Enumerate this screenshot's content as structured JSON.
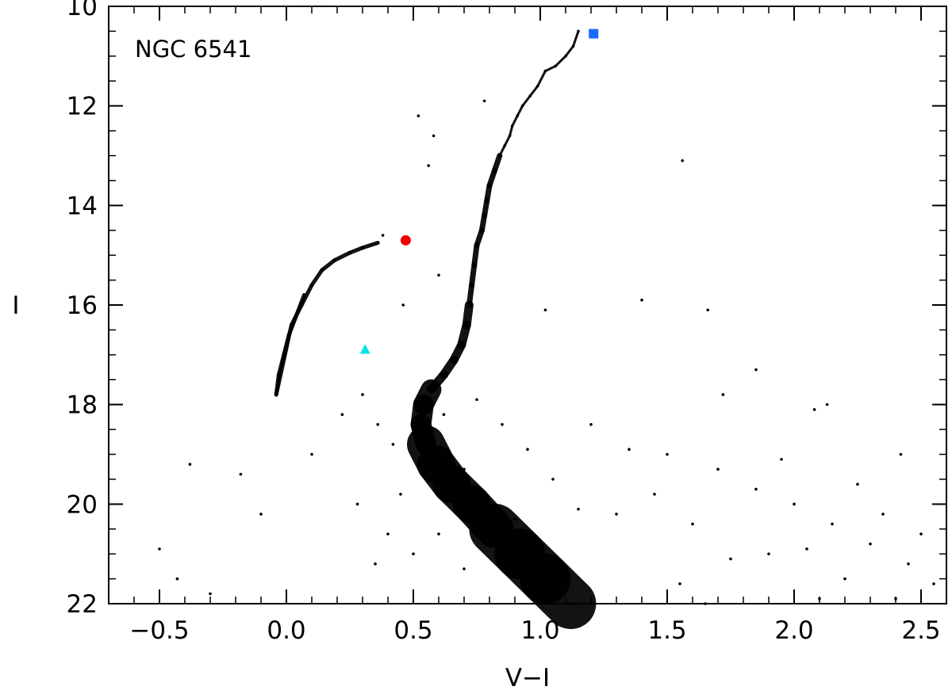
{
  "chart_data": {
    "type": "scatter",
    "title": "",
    "annotation": "NGC 6541",
    "xlabel": "V−I",
    "ylabel": "I",
    "xlim": [
      -0.7,
      2.6
    ],
    "ylim": [
      22,
      10
    ],
    "y_inverted": true,
    "grid": false,
    "legend": "none",
    "x_ticks": [
      -0.5,
      0.0,
      0.5,
      1.0,
      1.5,
      2.0,
      2.5
    ],
    "x_tick_labels": [
      "−0.5",
      "0.0",
      "0.5",
      "1.0",
      "1.5",
      "2.0",
      "2.5"
    ],
    "y_ticks": [
      10,
      12,
      14,
      16,
      18,
      20,
      22
    ],
    "y_tick_labels": [
      "10",
      "12",
      "14",
      "16",
      "18",
      "20",
      "22"
    ],
    "series": [
      {
        "kind": "dots",
        "color": "#000000",
        "points": [
          [
            1.15,
            10.5
          ],
          [
            1.13,
            10.8
          ],
          [
            1.1,
            11.0
          ],
          [
            1.06,
            11.2
          ],
          [
            1.02,
            11.3
          ],
          [
            0.99,
            11.6
          ],
          [
            0.96,
            11.8
          ],
          [
            0.93,
            12.0
          ],
          [
            0.91,
            12.2
          ],
          [
            0.89,
            12.4
          ],
          [
            0.88,
            12.6
          ],
          [
            0.86,
            12.8
          ],
          [
            0.84,
            13.0
          ],
          [
            0.82,
            13.3
          ],
          [
            0.8,
            13.6
          ],
          [
            0.79,
            13.9
          ],
          [
            0.78,
            14.2
          ],
          [
            0.77,
            14.5
          ],
          [
            0.75,
            14.8
          ],
          [
            0.74,
            15.2
          ],
          [
            0.73,
            15.6
          ],
          [
            0.72,
            16.0
          ],
          [
            0.71,
            16.4
          ],
          [
            0.69,
            16.8
          ],
          [
            0.66,
            17.1
          ],
          [
            0.62,
            17.4
          ],
          [
            0.57,
            17.7
          ],
          [
            0.54,
            18.0
          ],
          [
            0.53,
            18.4
          ],
          [
            0.55,
            18.8
          ],
          [
            0.59,
            19.2
          ],
          [
            0.65,
            19.6
          ],
          [
            0.73,
            20.0
          ],
          [
            0.82,
            20.5
          ],
          [
            0.92,
            21.0
          ],
          [
            1.02,
            21.5
          ],
          [
            1.12,
            22.0
          ],
          [
            0.07,
            15.8
          ],
          [
            0.04,
            16.2
          ],
          [
            0.01,
            16.6
          ],
          [
            -0.01,
            17.0
          ],
          [
            -0.03,
            17.4
          ],
          [
            -0.04,
            17.8
          ],
          [
            0.02,
            16.4
          ],
          [
            0.06,
            16.0
          ],
          [
            0.1,
            15.6
          ],
          [
            0.14,
            15.3
          ],
          [
            0.19,
            15.1
          ],
          [
            0.25,
            14.95
          ],
          [
            0.3,
            14.85
          ],
          [
            0.36,
            14.75
          ],
          [
            0.38,
            14.6
          ],
          [
            0.56,
            13.2
          ],
          [
            0.58,
            12.6
          ],
          [
            0.52,
            12.2
          ],
          [
            0.78,
            11.9
          ],
          [
            1.56,
            13.1
          ],
          [
            0.6,
            15.4
          ],
          [
            0.46,
            16.0
          ],
          [
            1.02,
            16.1
          ],
          [
            1.66,
            16.1
          ],
          [
            1.4,
            15.9
          ],
          [
            1.72,
            17.8
          ],
          [
            1.85,
            17.3
          ],
          [
            2.08,
            18.1
          ],
          [
            2.13,
            18.0
          ],
          [
            0.3,
            17.8
          ],
          [
            0.36,
            18.4
          ],
          [
            0.22,
            18.2
          ],
          [
            0.1,
            19.0
          ],
          [
            -0.18,
            19.4
          ],
          [
            -0.1,
            20.2
          ],
          [
            -0.38,
            19.2
          ],
          [
            -0.5,
            20.9
          ],
          [
            -0.43,
            21.5
          ],
          [
            -0.3,
            21.8
          ],
          [
            0.28,
            20.0
          ],
          [
            0.4,
            20.6
          ],
          [
            0.35,
            21.2
          ],
          [
            1.2,
            18.4
          ],
          [
            1.35,
            18.9
          ],
          [
            1.5,
            19.0
          ],
          [
            1.7,
            19.3
          ],
          [
            1.85,
            19.7
          ],
          [
            2.0,
            20.0
          ],
          [
            2.15,
            20.4
          ],
          [
            2.3,
            20.8
          ],
          [
            2.45,
            21.2
          ],
          [
            2.55,
            21.6
          ],
          [
            1.9,
            21.0
          ],
          [
            2.2,
            21.5
          ],
          [
            2.4,
            21.9
          ],
          [
            1.6,
            20.4
          ],
          [
            1.75,
            21.1
          ],
          [
            2.05,
            20.9
          ],
          [
            2.35,
            20.2
          ],
          [
            2.5,
            20.6
          ],
          [
            1.45,
            19.8
          ],
          [
            1.3,
            20.2
          ],
          [
            1.55,
            21.6
          ],
          [
            1.65,
            22.0
          ],
          [
            2.1,
            21.9
          ],
          [
            2.25,
            19.6
          ],
          [
            1.95,
            19.1
          ],
          [
            2.42,
            19.0
          ],
          [
            0.75,
            17.9
          ],
          [
            0.85,
            18.4
          ],
          [
            0.95,
            18.9
          ],
          [
            0.7,
            19.3
          ],
          [
            0.8,
            19.9
          ],
          [
            0.9,
            20.3
          ],
          [
            1.05,
            19.5
          ],
          [
            1.15,
            20.1
          ],
          [
            0.6,
            20.6
          ],
          [
            0.7,
            21.3
          ],
          [
            0.5,
            21.0
          ],
          [
            0.45,
            19.8
          ],
          [
            0.42,
            18.8
          ],
          [
            0.62,
            18.2
          ]
        ]
      },
      {
        "kind": "marker",
        "shape": "square",
        "color": "#1a6aff",
        "x": 1.21,
        "y": 10.55
      },
      {
        "kind": "marker",
        "shape": "circle",
        "color": "#ee0000",
        "x": 0.47,
        "y": 14.7
      },
      {
        "kind": "marker",
        "shape": "triangle",
        "color": "#00e5e5",
        "x": 0.31,
        "y": 16.9
      }
    ]
  }
}
